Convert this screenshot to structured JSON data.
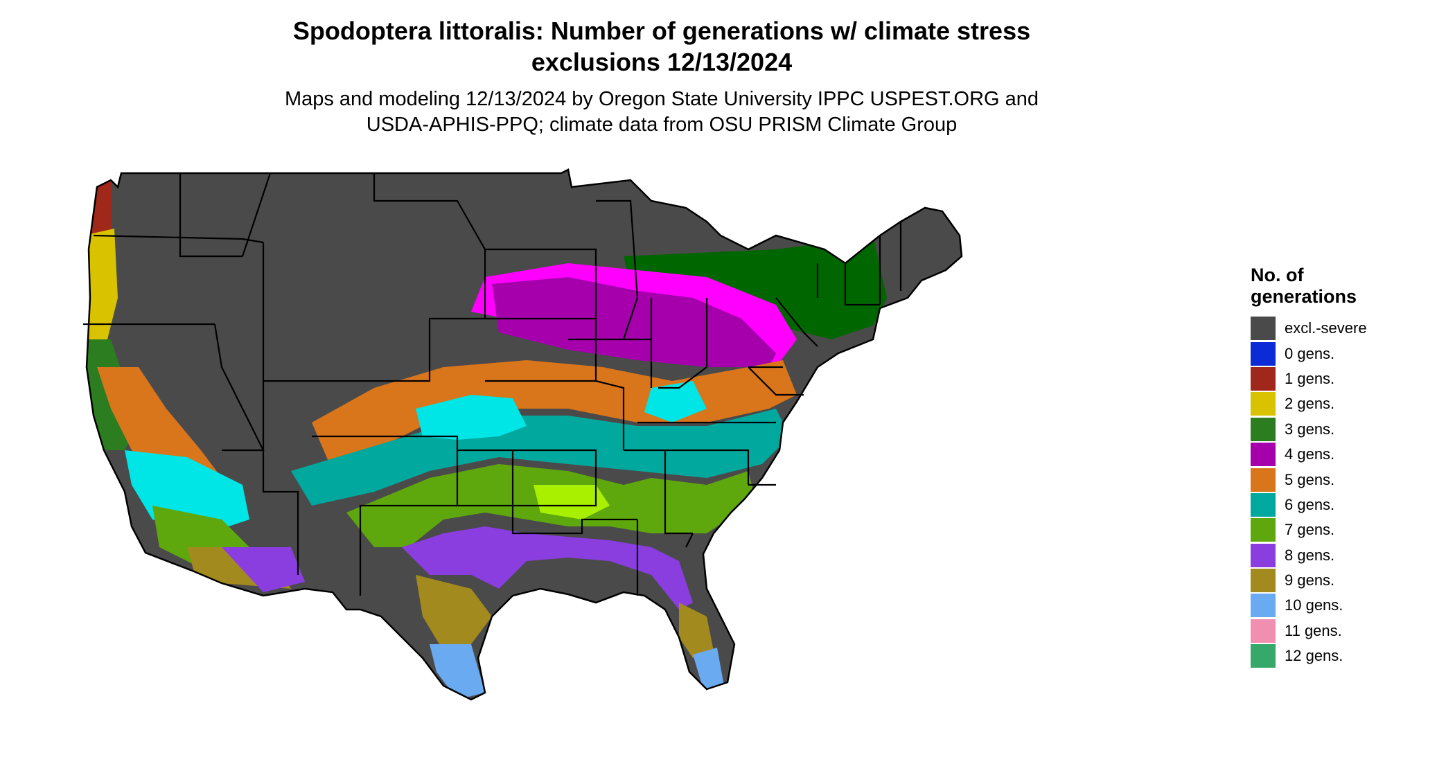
{
  "title_line1": "Spodoptera littoralis: Number of generations w/ climate stress",
  "title_line2": "exclusions 12/13/2024",
  "subtitle_line1": "Maps and modeling 12/13/2024 by Oregon State University IPPC USPEST.ORG and",
  "subtitle_line2": "USDA-APHIS-PPQ; climate data from OSU PRISM Climate Group",
  "legend": {
    "title_line1": "No. of",
    "title_line2": "generations",
    "items": [
      {
        "label": "excl.-severe",
        "color": "#4a4a4a"
      },
      {
        "label": "0 gens.",
        "color": "#0a2bd6"
      },
      {
        "label": "1 gens.",
        "color": "#a0281a"
      },
      {
        "label": "2 gens.",
        "color": "#d9c200"
      },
      {
        "label": "3 gens.",
        "color": "#2b7d1f"
      },
      {
        "label": "4 gens.",
        "color": "#a600ad"
      },
      {
        "label": "5 gens.",
        "color": "#d9751b"
      },
      {
        "label": "6 gens.",
        "color": "#00a89e"
      },
      {
        "label": "7 gens.",
        "color": "#5ea80d"
      },
      {
        "label": "8 gens.",
        "color": "#8a3ee0"
      },
      {
        "label": "9 gens.",
        "color": "#a28a1e"
      },
      {
        "label": "10 gens.",
        "color": "#6aaaf0"
      },
      {
        "label": "11 gens.",
        "color": "#f08fb0"
      },
      {
        "label": "12 gens.",
        "color": "#35a86a"
      }
    ]
  },
  "map_colors": {
    "background_land": "#4a4a4a",
    "bright_magenta": "#ff00ff",
    "bright_cyan": "#00e5e5",
    "bright_lime": "#a8f000",
    "dark_green": "#006600",
    "state_border": "#000000"
  }
}
